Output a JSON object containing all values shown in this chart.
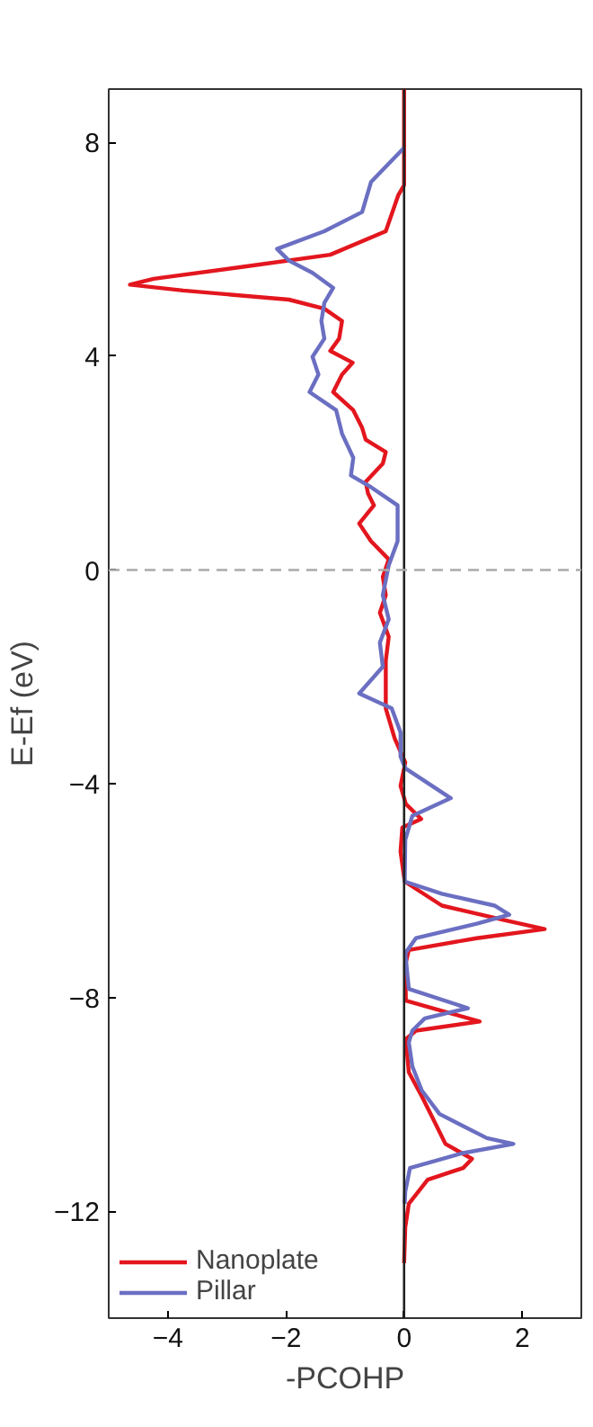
{
  "chart_data": {
    "type": "line",
    "xlabel": "-PCOHP",
    "ylabel": "E-Ef (eV)",
    "xlim": [
      -5,
      3
    ],
    "ylim": [
      -14,
      9
    ],
    "xticks": [
      -4,
      -2,
      0,
      2
    ],
    "yticks": [
      -12,
      -8,
      -4,
      0,
      4,
      8
    ],
    "grid": false,
    "legend": "bottom left",
    "line_style": "solid",
    "marker": "none",
    "ref_lines": [
      {
        "axis": "x",
        "value": 0,
        "color": "#222222",
        "line_style": "solid"
      },
      {
        "axis": "y",
        "value": 0,
        "color": "#aaaaaa",
        "line_style": "dashed"
      }
    ],
    "series": [
      {
        "name": "Nanoplate",
        "color": "#e3161e",
        "x": [
          0,
          0,
          -0.1,
          -0.31,
          -1.25,
          -2.75,
          -4.24,
          -4.64,
          -3.74,
          -1.95,
          -1.35,
          -1.05,
          -1.1,
          -1.25,
          -0.87,
          -1.05,
          -1.2,
          -0.86,
          -0.71,
          -0.65,
          -0.31,
          -0.36,
          -0.65,
          -0.61,
          -0.51,
          -0.76,
          -0.56,
          -0.26,
          -0.36,
          -0.31,
          -0.41,
          -0.26,
          -0.31,
          -0.31,
          -0.31,
          -0.16,
          0.02,
          -0.06,
          0.03,
          0.29,
          -0.03,
          -0.06,
          0.01,
          0.64,
          1.73,
          2.38,
          1.23,
          0.08,
          0.02,
          0.03,
          0.74,
          1.28,
          0.2,
          0.03,
          0.08,
          0.3,
          0.5,
          0.7,
          1.15,
          1.0,
          0.4,
          0.08,
          0.02,
          0
        ],
        "values": [
          9,
          7.2,
          7.01,
          6.34,
          5.9,
          5.67,
          5.45,
          5.34,
          5.23,
          5.06,
          4.89,
          4.66,
          4.33,
          4.1,
          3.88,
          3.66,
          3.33,
          2.99,
          2.66,
          2.44,
          2.21,
          1.99,
          1.65,
          1.43,
          1.21,
          0.87,
          0.54,
          0.2,
          -0.13,
          -0.47,
          -0.8,
          -1.25,
          -1.7,
          -2.15,
          -2.59,
          -3.15,
          -3.6,
          -4.04,
          -4.38,
          -4.66,
          -4.82,
          -5.27,
          -5.83,
          -6.28,
          -6.56,
          -6.72,
          -6.89,
          -7.11,
          -7.39,
          -8.06,
          -8.28,
          -8.45,
          -8.62,
          -8.78,
          -9.4,
          -9.85,
          -10.29,
          -10.74,
          -11.02,
          -11.19,
          -11.41,
          -11.86,
          -12.3,
          -12.97
        ]
      },
      {
        "name": "Pillar",
        "color": "#6b6fc2",
        "x": [
          0,
          -0.56,
          -0.71,
          -1.35,
          -2.15,
          -1.95,
          -1.55,
          -1.2,
          -1.35,
          -1.4,
          -1.35,
          -1.55,
          -1.45,
          -1.6,
          -1.15,
          -1.05,
          -0.86,
          -0.9,
          -0.56,
          -0.11,
          -0.11,
          -0.26,
          -0.36,
          -0.26,
          -0.41,
          -0.36,
          -0.76,
          -0.21,
          -0.06,
          -0.06,
          0.02,
          0.79,
          0.14,
          0.02,
          0.01,
          0.64,
          1.53,
          1.78,
          1.23,
          0.2,
          0.02,
          0.08,
          1.08,
          0.35,
          0.14,
          0.08,
          0.14,
          0.3,
          0.6,
          1.4,
          1.85,
          1.0,
          0.1,
          0.02,
          0.01
        ],
        "values": [
          7.9,
          7.26,
          6.7,
          6.34,
          6.01,
          5.79,
          5.56,
          5.28,
          5.0,
          4.66,
          4.33,
          3.99,
          3.66,
          3.33,
          2.99,
          2.55,
          2.1,
          1.77,
          1.55,
          1.21,
          0.54,
          0.09,
          -0.47,
          -0.92,
          -1.36,
          -1.81,
          -2.31,
          -2.59,
          -3.04,
          -3.49,
          -3.71,
          -4.27,
          -4.6,
          -5.05,
          -5.83,
          -6.06,
          -6.28,
          -6.45,
          -6.62,
          -6.89,
          -7.17,
          -7.84,
          -8.2,
          -8.39,
          -8.62,
          -8.84,
          -9.29,
          -9.74,
          -10.18,
          -10.63,
          -10.74,
          -10.91,
          -11.19,
          -11.63,
          -11.86
        ]
      }
    ]
  }
}
